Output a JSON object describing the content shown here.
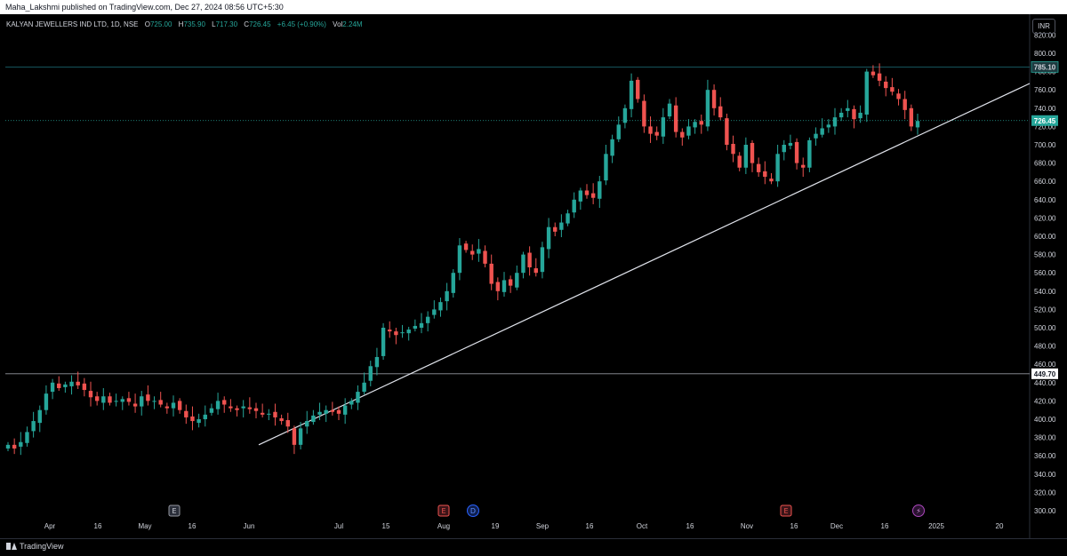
{
  "publisher_line": "Maha_Lakshmi published on TradingView.com, Dec 27, 2024 08:56 UTC+5:30",
  "legend": {
    "symbol": "KALYAN JEWELLERS IND LTD, 1D, NSE",
    "open_label": "O",
    "open": "725.00",
    "high_label": "H",
    "high": "735.90",
    "low_label": "L",
    "low": "717.30",
    "close_label": "C",
    "close": "726.45",
    "change": "+6.45 (+0.90%)",
    "vol_label": "Vol",
    "vol": "2.24M"
  },
  "currency_button": "INR",
  "footer_logo": "TradingView",
  "colors": {
    "up": "#26a69a",
    "down": "#ef5350",
    "background": "#000000",
    "axis_text": "#d1d4dc"
  },
  "chart_data": {
    "type": "candlestick",
    "y_axis_ticks": [
      300,
      320,
      340,
      360,
      380,
      400,
      420,
      440,
      460,
      480,
      500,
      520,
      540,
      560,
      580,
      600,
      620,
      640,
      660,
      680,
      700,
      720,
      740,
      760,
      780,
      800,
      820
    ],
    "x_axis_labels": [
      "Apr",
      "16",
      "May",
      "16",
      "Jun",
      "Jul",
      "15",
      "Aug",
      "19",
      "Sep",
      "16",
      "Oct",
      "16",
      "Nov",
      "16",
      "Dec",
      "16",
      "2025",
      "20"
    ],
    "price_labels": [
      {
        "value": 785.1,
        "text": "785.10",
        "style": "level"
      },
      {
        "value": 726.45,
        "text": "726.45",
        "style": "last"
      },
      {
        "value": 449.7,
        "text": "449.70",
        "style": "level"
      }
    ],
    "horizontal_lines": [
      785.1,
      449.7
    ],
    "trendline": {
      "from": {
        "date": "Jun",
        "price": 372
      },
      "to": {
        "date": "2025",
        "price": 767
      }
    },
    "event_markers": [
      {
        "label": "E",
        "near": "May",
        "type": "earnings-past"
      },
      {
        "label": "E",
        "near": "Aug",
        "type": "earnings"
      },
      {
        "label": "D",
        "near": "Aug",
        "type": "dividend"
      },
      {
        "label": "E",
        "near": "Nov",
        "type": "earnings"
      },
      {
        "label": "⚡",
        "near": "16",
        "type": "split"
      }
    ],
    "closes": [
      372,
      368,
      375,
      386,
      398,
      410,
      428,
      440,
      434,
      438,
      441,
      437,
      432,
      424,
      420,
      425,
      418,
      420,
      422,
      419,
      414,
      425,
      420,
      420,
      416,
      412,
      418,
      410,
      402,
      398,
      400,
      405,
      412,
      420,
      416,
      412,
      410,
      414,
      411,
      409,
      405,
      406,
      402,
      398,
      392,
      372,
      390,
      398,
      404,
      408,
      410,
      408,
      406,
      415,
      420,
      430,
      440,
      458,
      468,
      500,
      496,
      492,
      495,
      498,
      502,
      505,
      512,
      520,
      528,
      540,
      560,
      590,
      585,
      580,
      586,
      570,
      548,
      540,
      552,
      546,
      560,
      580,
      566,
      560,
      588,
      610,
      605,
      615,
      625,
      640,
      650,
      645,
      642,
      660,
      690,
      706,
      722,
      740,
      770,
      750,
      720,
      712,
      710,
      730,
      745,
      714,
      708,
      720,
      725,
      722,
      760,
      740,
      730,
      700,
      690,
      675,
      700,
      680,
      670,
      665,
      660,
      690,
      700,
      702,
      680,
      675,
      705,
      712,
      718,
      722,
      730,
      735,
      740,
      728,
      735,
      780,
      776,
      770,
      762,
      758,
      750,
      738,
      720,
      726
    ]
  }
}
